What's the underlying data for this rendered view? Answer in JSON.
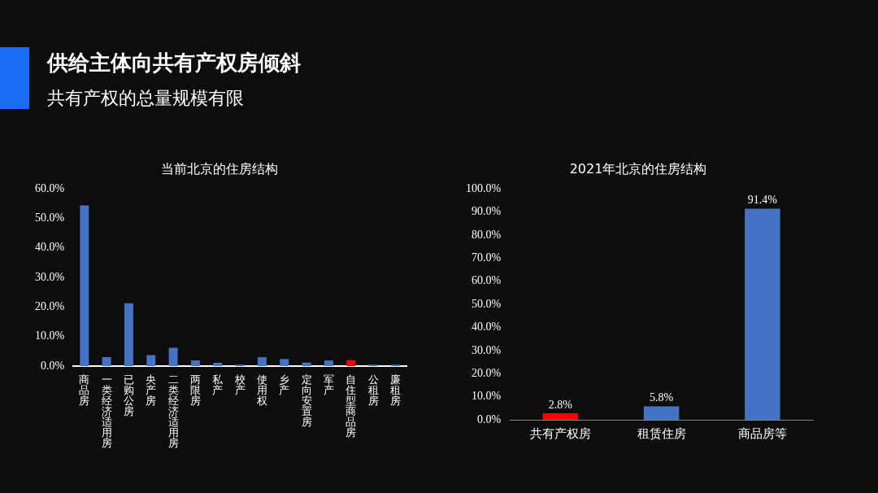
{
  "chart_data": [
    {
      "type": "other",
      "title": "供给主体向共有产权房倾斜",
      "subtitle": "共有产权的总量规模有限"
    },
    {
      "type": "bar",
      "title": "当前北京的住房结构",
      "categories": [
        "商品房",
        "一类经济适用房",
        "已购公房",
        "央产房",
        "二类经济适用房",
        "两限房",
        "私产",
        "校产",
        "使用权",
        "乡产",
        "定向安置房",
        "军产",
        "自住型商品房",
        "公租房",
        "廉租房"
      ],
      "values": [
        54.4,
        3.0,
        21.3,
        3.7,
        6.2,
        1.9,
        1.1,
        0.5,
        3.0,
        2.4,
        1.2,
        1.9,
        2.0,
        0.5,
        0.5
      ],
      "colors": [
        "#4472c4",
        "#4472c4",
        "#4472c4",
        "#4472c4",
        "#4472c4",
        "#4472c4",
        "#4472c4",
        "#4472c4",
        "#4472c4",
        "#4472c4",
        "#4472c4",
        "#4472c4",
        "#ff0000",
        "#4472c4",
        "#4472c4"
      ],
      "ylim": [
        0,
        60
      ],
      "yticks": [
        {
          "value": 0,
          "label": "0.0%"
        },
        {
          "value": 10,
          "label": "10.0%"
        },
        {
          "value": 20,
          "label": "20.0%"
        },
        {
          "value": 30,
          "label": "30.0%"
        },
        {
          "value": 40,
          "label": "40.0%"
        },
        {
          "value": 50,
          "label": "50.0%"
        },
        {
          "value": 60,
          "label": "60.0%"
        }
      ],
      "grid": false,
      "legend": false
    },
    {
      "type": "bar",
      "title": "2021年北京的住房结构",
      "categories": [
        "共有产权房",
        "租赁住房",
        "商品房等"
      ],
      "values": [
        2.8,
        5.8,
        91.4
      ],
      "colors": [
        "#ff0000",
        "#4472c4",
        "#4472c4"
      ],
      "value_labels": [
        "2.8%",
        "5.8%",
        "91.4%"
      ],
      "ylim": [
        0,
        100
      ],
      "yticks": [
        {
          "value": 0,
          "label": "0.0%"
        },
        {
          "value": 10,
          "label": "10.0%"
        },
        {
          "value": 20,
          "label": "20.0%"
        },
        {
          "value": 30,
          "label": "30.0%"
        },
        {
          "value": 40,
          "label": "40.0%"
        },
        {
          "value": 50,
          "label": "50.0%"
        },
        {
          "value": 60,
          "label": "60.0%"
        },
        {
          "value": 70,
          "label": "70.0%"
        },
        {
          "value": 80,
          "label": "80.0%"
        },
        {
          "value": 90,
          "label": "90.0%"
        },
        {
          "value": 100,
          "label": "100.0%"
        }
      ],
      "grid": false,
      "legend": false
    }
  ]
}
